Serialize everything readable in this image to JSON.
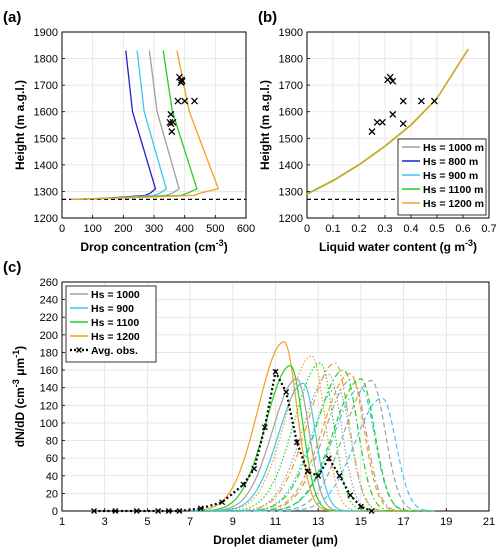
{
  "chart_data": [
    {
      "panel": "(a)",
      "type": "line",
      "xlabel": "Drop concentration (cm",
      "xlabel_sup": "-3",
      "xlabel_end": ")",
      "ylabel": "Height (m a.g.l.)",
      "xlim": [
        0,
        600
      ],
      "ylim": [
        1200,
        1900
      ],
      "xticks": [
        0,
        100,
        200,
        300,
        400,
        500,
        600
      ],
      "yticks": [
        1200,
        1300,
        1400,
        1500,
        1600,
        1700,
        1800,
        1900
      ],
      "cloud_base": 1270,
      "series": [
        {
          "color": "#2020c8",
          "x": [
            30,
            150,
            272,
            290,
            305,
            230,
            208
          ],
          "y": [
            1270,
            1275,
            1285,
            1295,
            1310,
            1600,
            1830
          ]
        },
        {
          "color": "#3cc8f0",
          "x": [
            30,
            160,
            300,
            322,
            340,
            268,
            245
          ],
          "y": [
            1270,
            1275,
            1285,
            1295,
            1310,
            1600,
            1830
          ]
        },
        {
          "color": "#a0a0a0",
          "x": [
            30,
            170,
            340,
            362,
            382,
            310,
            285
          ],
          "y": [
            1270,
            1275,
            1285,
            1295,
            1310,
            1600,
            1830
          ]
        },
        {
          "color": "#20d020",
          "x": [
            30,
            180,
            390,
            412,
            440,
            360,
            330
          ],
          "y": [
            1270,
            1275,
            1285,
            1295,
            1310,
            1600,
            1830
          ]
        },
        {
          "color": "#f0a020",
          "x": [
            30,
            190,
            430,
            455,
            510,
            415,
            375
          ],
          "y": [
            1270,
            1275,
            1285,
            1295,
            1310,
            1600,
            1830
          ]
        }
      ],
      "obs": {
        "x": [
          383,
          390,
          388,
          392,
          378,
          400,
          432,
          355,
          352,
          362,
          355,
          358
        ],
        "y": [
          1730,
          1720,
          1710,
          1715,
          1640,
          1640,
          1640,
          1590,
          1560,
          1560,
          1555,
          1525
        ]
      }
    },
    {
      "panel": "(b)",
      "type": "line",
      "xlabel": "Liquid water content (g m",
      "xlabel_sup": "-3",
      "xlabel_end": ")",
      "ylabel": "Height (m a.g.l.)",
      "xlim": [
        0,
        0.7
      ],
      "ylim": [
        1200,
        1900
      ],
      "xticks": [
        0,
        0.1,
        0.2,
        0.3,
        0.4,
        0.5,
        0.6,
        0.7
      ],
      "xticklabels": [
        "0",
        "0.1",
        "0.2",
        "0.3",
        "0.4",
        "0.5",
        "0.6",
        "0.7"
      ],
      "yticks": [
        1200,
        1300,
        1400,
        1500,
        1600,
        1700,
        1800,
        1900
      ],
      "cloud_base": 1270,
      "legend": [
        "Hs = 1000 m",
        "Hs = 800 m",
        "Hs = 900 m",
        "Hs = 1100 m",
        "Hs = 1200 m"
      ],
      "legend_colors": [
        "#a0a0a0",
        "#2020c8",
        "#3cc8f0",
        "#20d020",
        "#f0a020"
      ],
      "legend_position": "lower-right",
      "series": [
        {
          "color": "#a0a0a0",
          "x": [
            0,
            0.1,
            0.2,
            0.3,
            0.4,
            0.5,
            0.62
          ],
          "y": [
            1290,
            1340,
            1400,
            1470,
            1550,
            1650,
            1835
          ]
        },
        {
          "color": "#20d020",
          "x": [
            0,
            0.1,
            0.2,
            0.3,
            0.4,
            0.5,
            0.62
          ],
          "y": [
            1291,
            1341,
            1401,
            1471,
            1551,
            1651,
            1836
          ]
        },
        {
          "color": "#f0a020",
          "x": [
            0,
            0.1,
            0.2,
            0.3,
            0.4,
            0.5,
            0.62
          ],
          "y": [
            1289,
            1339,
            1399,
            1469,
            1549,
            1649,
            1834
          ]
        }
      ],
      "obs": {
        "x": [
          0.31,
          0.32,
          0.33,
          0.37,
          0.44,
          0.49,
          0.33,
          0.29,
          0.27,
          0.37,
          0.25
        ],
        "y": [
          1720,
          1730,
          1715,
          1640,
          1640,
          1640,
          1590,
          1560,
          1560,
          1555,
          1525
        ]
      }
    },
    {
      "panel": "(c)",
      "type": "line",
      "xlabel": "Droplet diameter (",
      "xlabel_mu": "μ",
      "xlabel_end": "m)",
      "ylabel": "dN/dD (cm",
      "ylabel_sup": "-3",
      "ylabel_mu": "μ",
      "ylabel_mid": "m",
      "ylabel_sup2": "-1",
      "ylabel_end": ")",
      "xlim": [
        1,
        21
      ],
      "ylim": [
        0,
        260
      ],
      "xticks": [
        1,
        3,
        5,
        7,
        9,
        11,
        13,
        15,
        17,
        19,
        21
      ],
      "yticks": [
        0,
        20,
        40,
        60,
        80,
        100,
        120,
        140,
        160,
        180,
        200,
        220,
        240,
        260
      ],
      "legend": [
        "Hs = 1000",
        "Hs = 900",
        "Hs = 1100",
        "Hs = 1200",
        "Avg. obs."
      ],
      "legend_colors": [
        "#a0a0a0",
        "#3cc8f0",
        "#20d020",
        "#f0a020",
        "#000000"
      ],
      "legend_position": "top-left",
      "series": [
        {
          "color": "#f0a020",
          "dash": "",
          "peak": 11.4,
          "height": 192,
          "width": 0.9
        },
        {
          "color": "#20d020",
          "dash": "",
          "peak": 11.7,
          "height": 165,
          "width": 0.85
        },
        {
          "color": "#a0a0a0",
          "dash": "",
          "peak": 12.0,
          "height": 150,
          "width": 0.85
        },
        {
          "color": "#3cc8f0",
          "dash": "",
          "peak": 12.3,
          "height": 145,
          "width": 0.85
        },
        {
          "color": "#f0a020",
          "dash": "1.5,2",
          "peak": 12.7,
          "height": 176,
          "width": 0.9
        },
        {
          "color": "#20d020",
          "dash": "1.5,2",
          "peak": 13.1,
          "height": 168,
          "width": 0.9
        },
        {
          "color": "#a0a0a0",
          "dash": "1.5,2",
          "peak": 13.5,
          "height": 155,
          "width": 0.9
        },
        {
          "color": "#3cc8f0",
          "dash": "1.5,2",
          "peak": 13.9,
          "height": 140,
          "width": 0.9
        },
        {
          "color": "#f0a020",
          "dash": "6,3,1.5,3",
          "peak": 13.8,
          "height": 168,
          "width": 0.95
        },
        {
          "color": "#20d020",
          "dash": "6,3,1.5,3",
          "peak": 14.2,
          "height": 160,
          "width": 0.95
        },
        {
          "color": "#a0a0a0",
          "dash": "6,3,1.5,3",
          "peak": 14.6,
          "height": 150,
          "width": 0.95
        },
        {
          "color": "#3cc8f0",
          "dash": "6,3,1.5,3",
          "peak": 15.0,
          "height": 140,
          "width": 0.95
        },
        {
          "color": "#f0a020",
          "dash": "5,3",
          "peak": 14.5,
          "height": 156,
          "width": 0.95
        },
        {
          "color": "#20d020",
          "dash": "5,3",
          "peak": 15.0,
          "height": 150,
          "width": 0.95
        },
        {
          "color": "#a0a0a0",
          "dash": "5,3",
          "peak": 15.5,
          "height": 148,
          "width": 0.95
        },
        {
          "color": "#3cc8f0",
          "dash": "5,3",
          "peak": 16.0,
          "height": 128,
          "width": 0.95
        }
      ],
      "obs": {
        "x": [
          2.5,
          3.5,
          4.5,
          5.5,
          6.0,
          6.5,
          7.5,
          8.5,
          9.5,
          10.0,
          10.5,
          11.0,
          11.5,
          12.0,
          12.5,
          13.0,
          13.5,
          14.0,
          14.5,
          15.0,
          15.5
        ],
        "y": [
          0,
          0,
          0,
          0,
          0,
          0,
          3,
          10,
          30,
          48,
          95,
          158,
          135,
          78,
          45,
          40,
          60,
          40,
          18,
          5,
          0
        ]
      }
    }
  ]
}
